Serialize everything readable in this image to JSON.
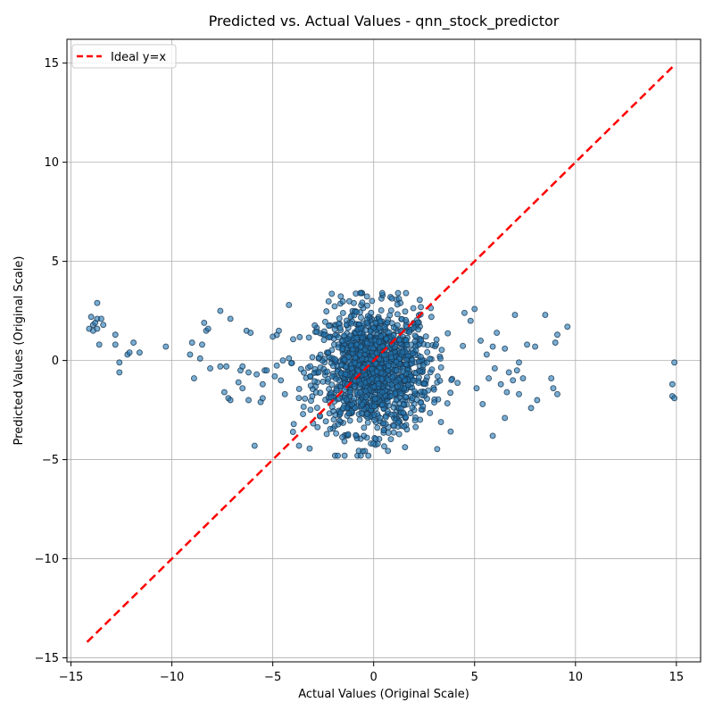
{
  "chart_data": {
    "type": "scatter",
    "title": "Predicted vs. Actual Values - qnn_stock_predictor",
    "xlabel": "Actual Values (Original Scale)",
    "ylabel": "Predicted Values (Original Scale)",
    "xlim": [
      -15.2,
      16.2
    ],
    "ylim": [
      -15.2,
      16.2
    ],
    "xticks": [
      -15,
      -10,
      -5,
      0,
      5,
      10,
      15
    ],
    "yticks": [
      -15,
      -10,
      -5,
      0,
      5,
      10,
      15
    ],
    "tick_labels": {
      "x": [
        "−15",
        "−10",
        "−5",
        "0",
        "5",
        "10",
        "15"
      ],
      "y": [
        "−15",
        "−10",
        "−5",
        "0",
        "5",
        "10",
        "15"
      ]
    },
    "grid": true,
    "legend": {
      "position": "top-left",
      "entries": [
        {
          "label": "Ideal y=x",
          "color": "#ff0000",
          "style": "dashed"
        }
      ]
    },
    "reference_line": {
      "name": "Ideal y=x",
      "x": [
        -14.2,
        14.8
      ],
      "y": [
        -14.2,
        14.8
      ],
      "color": "#ff0000"
    },
    "scatter_style": {
      "fill": "#1f77b4",
      "edge": "#1b3a55",
      "alpha": 0.6
    },
    "outliers": [
      [
        -14.1,
        1.6
      ],
      [
        -14.0,
        2.2
      ],
      [
        -13.9,
        1.5
      ],
      [
        -13.9,
        1.8
      ],
      [
        -13.8,
        1.9
      ],
      [
        -13.7,
        1.6
      ],
      [
        -13.7,
        2.9
      ],
      [
        -13.7,
        2.1
      ],
      [
        -13.6,
        0.8
      ],
      [
        -13.5,
        2.1
      ],
      [
        -13.4,
        1.8
      ],
      [
        -12.8,
        1.3
      ],
      [
        -12.8,
        0.8
      ],
      [
        -12.6,
        -0.1
      ],
      [
        -12.6,
        -0.6
      ],
      [
        -12.2,
        0.3
      ],
      [
        -12.1,
        0.4
      ],
      [
        -11.9,
        0.9
      ],
      [
        -11.6,
        0.4
      ],
      [
        -10.3,
        0.7
      ],
      [
        -9.1,
        0.3
      ],
      [
        -9.0,
        0.9
      ],
      [
        -8.9,
        -0.9
      ],
      [
        -8.6,
        0.1
      ],
      [
        -8.5,
        0.8
      ],
      [
        -8.4,
        1.9
      ],
      [
        -8.3,
        1.5
      ],
      [
        -8.2,
        1.6
      ],
      [
        -8.1,
        -0.4
      ],
      [
        -7.6,
        -0.3
      ],
      [
        -7.6,
        2.5
      ],
      [
        -7.4,
        -1.6
      ],
      [
        -7.3,
        -0.3
      ],
      [
        -7.2,
        -1.9
      ],
      [
        -7.1,
        -2.0
      ],
      [
        -7.1,
        2.1
      ],
      [
        -6.7,
        -1.1
      ],
      [
        -6.6,
        -0.5
      ],
      [
        -6.5,
        -1.4
      ],
      [
        -6.5,
        -0.3
      ],
      [
        -6.3,
        1.5
      ],
      [
        -6.2,
        -0.6
      ],
      [
        -6.2,
        -2.0
      ],
      [
        -6.1,
        1.4
      ],
      [
        -5.9,
        -4.3
      ],
      [
        -5.8,
        -0.7
      ],
      [
        -5.6,
        -2.1
      ],
      [
        -5.5,
        -1.2
      ],
      [
        -5.5,
        -1.9
      ],
      [
        -5.4,
        -0.5
      ],
      [
        -5.3,
        -0.5
      ],
      [
        -5.0,
        1.2
      ],
      [
        -4.9,
        -0.8
      ],
      [
        -4.7,
        1.5
      ],
      [
        -4.6,
        -1.0
      ],
      [
        -4.5,
        0.0
      ],
      [
        -4.4,
        -1.7
      ],
      [
        -4.2,
        2.8
      ],
      [
        -4.0,
        -3.6
      ],
      [
        -3.7,
        -4.3
      ],
      [
        -3.5,
        -2.7
      ],
      [
        4.5,
        2.4
      ],
      [
        4.8,
        2.0
      ],
      [
        5.0,
        2.6
      ],
      [
        5.1,
        -1.4
      ],
      [
        5.3,
        1.0
      ],
      [
        5.4,
        -2.2
      ],
      [
        5.6,
        0.3
      ],
      [
        5.7,
        -0.9
      ],
      [
        5.9,
        0.7
      ],
      [
        5.9,
        -3.8
      ],
      [
        6.0,
        -0.4
      ],
      [
        6.1,
        1.4
      ],
      [
        6.3,
        -1.2
      ],
      [
        6.5,
        0.6
      ],
      [
        6.5,
        -2.9
      ],
      [
        6.6,
        -1.6
      ],
      [
        6.7,
        -0.6
      ],
      [
        6.9,
        -1.0
      ],
      [
        7.0,
        2.3
      ],
      [
        7.1,
        -0.5
      ],
      [
        7.2,
        -0.1
      ],
      [
        7.2,
        -1.7
      ],
      [
        7.4,
        -0.9
      ],
      [
        7.6,
        0.8
      ],
      [
        7.8,
        -2.4
      ],
      [
        8.0,
        0.7
      ],
      [
        8.1,
        -2.0
      ],
      [
        8.5,
        2.3
      ],
      [
        8.8,
        -0.9
      ],
      [
        8.9,
        -1.4
      ],
      [
        9.0,
        0.9
      ],
      [
        9.1,
        1.3
      ],
      [
        9.1,
        -1.7
      ],
      [
        9.6,
        1.7
      ],
      [
        14.8,
        -1.2
      ],
      [
        14.8,
        -1.8
      ],
      [
        14.9,
        -1.9
      ],
      [
        14.9,
        -0.1
      ]
    ],
    "cloud": {
      "count": 1400,
      "center": [
        0.0,
        -0.5
      ],
      "spread": [
        1.4,
        1.55
      ],
      "x_range": [
        -4.8,
        4.8
      ],
      "y_range": [
        -4.8,
        3.4
      ]
    }
  }
}
